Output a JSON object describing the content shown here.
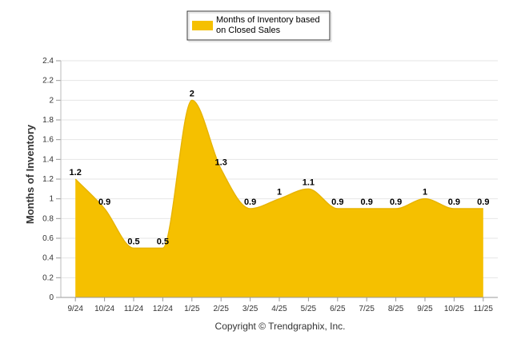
{
  "chart_data": {
    "type": "area",
    "title": "",
    "xlabel": "",
    "ylabel": "Months of Inventory",
    "categories": [
      "9/24",
      "10/24",
      "11/24",
      "12/24",
      "1/25",
      "2/25",
      "3/25",
      "4/25",
      "5/25",
      "6/25",
      "7/25",
      "8/25",
      "9/25",
      "10/25",
      "11/25"
    ],
    "series": [
      {
        "name": "Months of Inventory based on Closed Sales",
        "values": [
          1.2,
          0.9,
          0.5,
          0.5,
          2,
          1.3,
          0.9,
          1,
          1.1,
          0.9,
          0.9,
          0.9,
          1,
          0.9,
          0.9
        ],
        "data_labels": [
          "1.2",
          "0.9",
          "0.5",
          "0.5",
          "2",
          "1.3",
          "0.9",
          "1",
          "1.1",
          "0.9",
          "0.9",
          "0.9",
          "1",
          "0.9",
          "0.9"
        ],
        "color": "#F5C000"
      }
    ],
    "ylim": [
      0,
      2.4
    ],
    "yticks": [
      "0",
      "0.2",
      "0.4",
      "0.6",
      "0.8",
      "1",
      "1.2",
      "1.4",
      "1.6",
      "1.8",
      "2",
      "2.2",
      "2.4"
    ],
    "grid": true,
    "legend_position": "top-center"
  },
  "legend": {
    "line1": "Months of Inventory based",
    "line2": "on Closed Sales"
  },
  "footer": {
    "copyright": "Copyright © Trendgraphix, Inc."
  }
}
